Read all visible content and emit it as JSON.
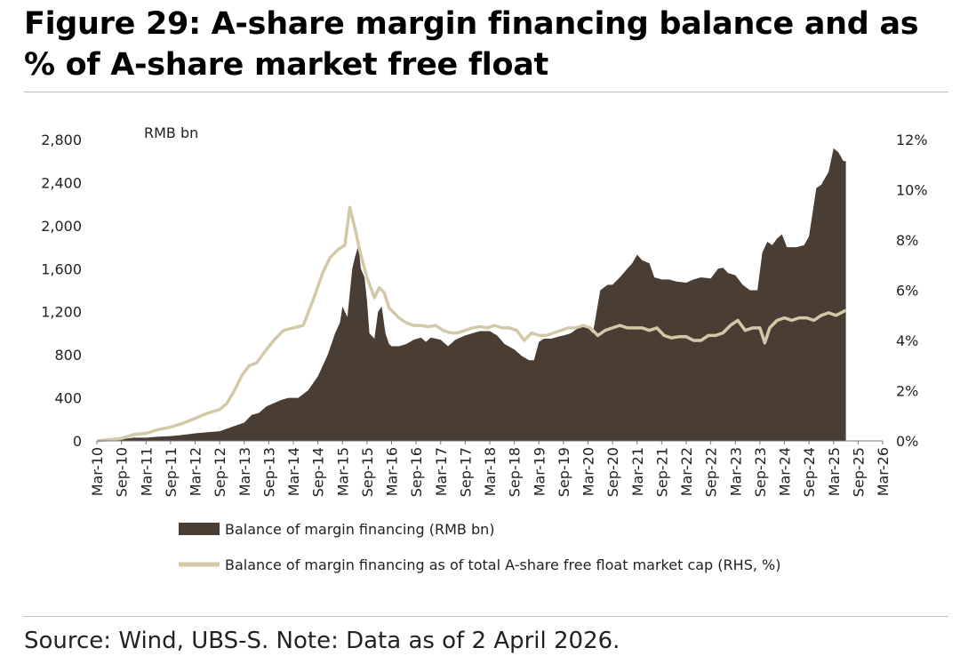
{
  "header": {
    "title": "Figure 29: A-share margin financing balance and as % of A-share market free float"
  },
  "footer": {
    "source": "Source: Wind, UBS-S. Note: Data as of 2 April 2026."
  },
  "colors": {
    "balance": "#4a3e34",
    "ratio": "#d2c9a9"
  },
  "chart_data": {
    "type": "area",
    "unit_label": "RMB bn",
    "x": [
      "Mar-10",
      "Sep-10",
      "Mar-11",
      "Sep-11",
      "Mar-12",
      "Sep-12",
      "Mar-13",
      "Sep-13",
      "Mar-14",
      "Sep-14",
      "Mar-15",
      "Sep-15",
      "Mar-16",
      "Sep-16",
      "Mar-17",
      "Sep-17",
      "Mar-18",
      "Sep-18",
      "Mar-19",
      "Sep-19",
      "Mar-20",
      "Sep-20",
      "Mar-21",
      "Sep-21",
      "Mar-22",
      "Sep-22",
      "Mar-23",
      "Sep-23",
      "Mar-24",
      "Sep-24",
      "Mar-25",
      "Sep-25",
      "Mar-26"
    ],
    "y_left": {
      "label": "RMB bn",
      "range": [
        0,
        2800
      ],
      "ticks": [
        "0",
        "400",
        "800",
        "1,200",
        "1,600",
        "2,000",
        "2,400",
        "2,800"
      ]
    },
    "y_right": {
      "label": "%",
      "range": [
        0,
        12
      ],
      "ticks": [
        "0%",
        "2%",
        "4%",
        "6%",
        "8%",
        "10%",
        "12%"
      ]
    },
    "series": [
      {
        "name": "Balance of margin financing (RMB bn)",
        "type": "area",
        "axis": "left",
        "points": [
          [
            0,
            0
          ],
          [
            0.5,
            5
          ],
          [
            1,
            15
          ],
          [
            1.5,
            30
          ],
          [
            2,
            30
          ],
          [
            2.5,
            40
          ],
          [
            3,
            45
          ],
          [
            3.5,
            55
          ],
          [
            4,
            70
          ],
          [
            4.5,
            80
          ],
          [
            5,
            90
          ],
          [
            5.5,
            130
          ],
          [
            6,
            170
          ],
          [
            6.3,
            240
          ],
          [
            6.6,
            260
          ],
          [
            6.9,
            320
          ],
          [
            7.2,
            350
          ],
          [
            7.5,
            380
          ],
          [
            7.8,
            400
          ],
          [
            8.2,
            400
          ],
          [
            8.6,
            470
          ],
          [
            9,
            600
          ],
          [
            9.4,
            800
          ],
          [
            9.7,
            1000
          ],
          [
            9.9,
            1100
          ],
          [
            10.0,
            1250
          ],
          [
            10.2,
            1150
          ],
          [
            10.4,
            1600
          ],
          [
            10.5,
            1700
          ],
          [
            10.65,
            1820
          ],
          [
            10.75,
            1600
          ],
          [
            10.9,
            1520
          ],
          [
            11.0,
            1300
          ],
          [
            11.1,
            1000
          ],
          [
            11.3,
            950
          ],
          [
            11.45,
            1200
          ],
          [
            11.6,
            1250
          ],
          [
            11.75,
            1000
          ],
          [
            11.9,
            900
          ],
          [
            12,
            880
          ],
          [
            12.3,
            880
          ],
          [
            12.6,
            900
          ],
          [
            12.9,
            940
          ],
          [
            13.2,
            960
          ],
          [
            13.4,
            920
          ],
          [
            13.6,
            960
          ],
          [
            14,
            940
          ],
          [
            14.3,
            880
          ],
          [
            14.6,
            940
          ],
          [
            15,
            980
          ],
          [
            15.3,
            1000
          ],
          [
            15.6,
            1020
          ],
          [
            16,
            1020
          ],
          [
            16.3,
            980
          ],
          [
            16.6,
            900
          ],
          [
            17,
            850
          ],
          [
            17.3,
            790
          ],
          [
            17.6,
            750
          ],
          [
            17.8,
            750
          ],
          [
            18,
            920
          ],
          [
            18.2,
            950
          ],
          [
            18.5,
            950
          ],
          [
            18.8,
            970
          ],
          [
            19,
            980
          ],
          [
            19.3,
            1000
          ],
          [
            19.6,
            1050
          ],
          [
            19.9,
            1080
          ],
          [
            20,
            1050
          ],
          [
            20.2,
            1000
          ],
          [
            20.5,
            1400
          ],
          [
            20.8,
            1450
          ],
          [
            21,
            1450
          ],
          [
            21.3,
            1520
          ],
          [
            21.6,
            1600
          ],
          [
            21.8,
            1650
          ],
          [
            22,
            1730
          ],
          [
            22.2,
            1680
          ],
          [
            22.5,
            1650
          ],
          [
            22.7,
            1520
          ],
          [
            23,
            1500
          ],
          [
            23.3,
            1500
          ],
          [
            23.6,
            1480
          ],
          [
            24,
            1470
          ],
          [
            24.3,
            1500
          ],
          [
            24.6,
            1520
          ],
          [
            25,
            1510
          ],
          [
            25.3,
            1600
          ],
          [
            25.5,
            1610
          ],
          [
            25.7,
            1560
          ],
          [
            26,
            1540
          ],
          [
            26.3,
            1450
          ],
          [
            26.6,
            1400
          ],
          [
            26.9,
            1400
          ],
          [
            27.1,
            1750
          ],
          [
            27.3,
            1850
          ],
          [
            27.5,
            1820
          ],
          [
            27.7,
            1880
          ],
          [
            27.9,
            1920
          ],
          [
            28.1,
            1800
          ],
          [
            28.5,
            1800
          ],
          [
            28.8,
            1820
          ],
          [
            29,
            1900
          ],
          [
            29.3,
            2350
          ],
          [
            29.5,
            2380
          ],
          [
            29.8,
            2500
          ],
          [
            30,
            2720
          ],
          [
            30.2,
            2680
          ],
          [
            30.4,
            2600
          ],
          [
            30.5,
            2600
          ]
        ]
      },
      {
        "name": "Balance of margin financing as of total A-share free float market cap (RHS, %)",
        "type": "line",
        "axis": "right",
        "points": [
          [
            0,
            0
          ],
          [
            0.5,
            0.05
          ],
          [
            1,
            0.1
          ],
          [
            1.5,
            0.25
          ],
          [
            2,
            0.3
          ],
          [
            2.5,
            0.45
          ],
          [
            3,
            0.55
          ],
          [
            3.5,
            0.7
          ],
          [
            4,
            0.9
          ],
          [
            4.5,
            1.1
          ],
          [
            5,
            1.25
          ],
          [
            5.3,
            1.5
          ],
          [
            5.6,
            2.0
          ],
          [
            5.9,
            2.6
          ],
          [
            6.2,
            3.0
          ],
          [
            6.5,
            3.1
          ],
          [
            6.8,
            3.5
          ],
          [
            7.2,
            4.0
          ],
          [
            7.6,
            4.4
          ],
          [
            8,
            4.5
          ],
          [
            8.4,
            4.6
          ],
          [
            8.8,
            5.6
          ],
          [
            9.2,
            6.7
          ],
          [
            9.5,
            7.3
          ],
          [
            9.8,
            7.6
          ],
          [
            10.1,
            7.8
          ],
          [
            10.3,
            9.3
          ],
          [
            10.5,
            8.5
          ],
          [
            10.7,
            7.6
          ],
          [
            11,
            6.5
          ],
          [
            11.3,
            5.7
          ],
          [
            11.5,
            6.1
          ],
          [
            11.7,
            5.9
          ],
          [
            11.9,
            5.3
          ],
          [
            12,
            5.2
          ],
          [
            12.3,
            4.9
          ],
          [
            12.6,
            4.7
          ],
          [
            12.9,
            4.6
          ],
          [
            13.2,
            4.6
          ],
          [
            13.5,
            4.55
          ],
          [
            13.8,
            4.6
          ],
          [
            14.1,
            4.4
          ],
          [
            14.4,
            4.3
          ],
          [
            14.7,
            4.3
          ],
          [
            15,
            4.4
          ],
          [
            15.3,
            4.5
          ],
          [
            15.6,
            4.55
          ],
          [
            15.9,
            4.5
          ],
          [
            16.2,
            4.6
          ],
          [
            16.5,
            4.5
          ],
          [
            16.8,
            4.5
          ],
          [
            17.1,
            4.4
          ],
          [
            17.4,
            4.0
          ],
          [
            17.7,
            4.3
          ],
          [
            18,
            4.2
          ],
          [
            18.3,
            4.2
          ],
          [
            18.6,
            4.3
          ],
          [
            18.9,
            4.4
          ],
          [
            19.2,
            4.5
          ],
          [
            19.5,
            4.5
          ],
          [
            19.8,
            4.6
          ],
          [
            20.1,
            4.5
          ],
          [
            20.4,
            4.2
          ],
          [
            20.7,
            4.4
          ],
          [
            21,
            4.5
          ],
          [
            21.3,
            4.6
          ],
          [
            21.6,
            4.5
          ],
          [
            21.9,
            4.5
          ],
          [
            22.2,
            4.5
          ],
          [
            22.5,
            4.4
          ],
          [
            22.8,
            4.5
          ],
          [
            23.1,
            4.2
          ],
          [
            23.4,
            4.1
          ],
          [
            23.7,
            4.15
          ],
          [
            24,
            4.15
          ],
          [
            24.3,
            4.0
          ],
          [
            24.6,
            4.0
          ],
          [
            24.9,
            4.2
          ],
          [
            25.2,
            4.2
          ],
          [
            25.5,
            4.3
          ],
          [
            25.8,
            4.6
          ],
          [
            26.1,
            4.8
          ],
          [
            26.4,
            4.4
          ],
          [
            26.7,
            4.5
          ],
          [
            27,
            4.5
          ],
          [
            27.2,
            3.9
          ],
          [
            27.4,
            4.5
          ],
          [
            27.7,
            4.8
          ],
          [
            28,
            4.9
          ],
          [
            28.3,
            4.8
          ],
          [
            28.6,
            4.9
          ],
          [
            28.9,
            4.9
          ],
          [
            29.2,
            4.8
          ],
          [
            29.5,
            5.0
          ],
          [
            29.8,
            5.1
          ],
          [
            30.1,
            5.0
          ],
          [
            30.3,
            5.1
          ],
          [
            30.5,
            5.2
          ]
        ]
      }
    ],
    "legend": {
      "position": "bottom"
    }
  }
}
